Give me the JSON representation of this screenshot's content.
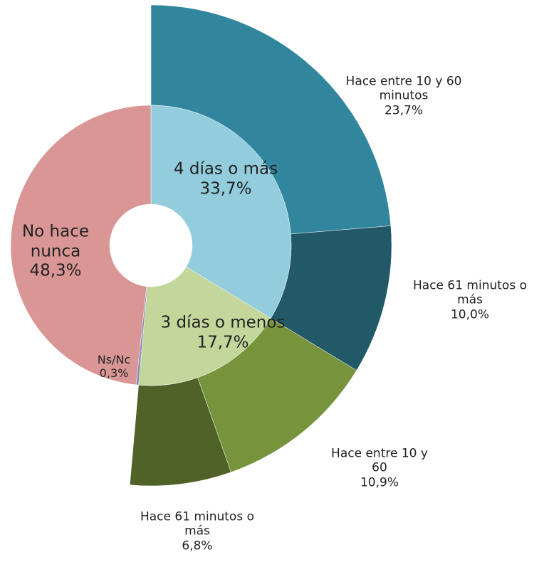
{
  "chart_data": {
    "type": "sunburst",
    "inner": {
      "categories": [
        "4 días o más",
        "3 días o menos",
        "Ns/Nc",
        "No hace nunca"
      ],
      "values": [
        33.7,
        17.7,
        0.3,
        48.3
      ],
      "value_labels": [
        "33,7%",
        "17,7%",
        "0,3%",
        "48,3%"
      ],
      "colors": [
        "#93cddd",
        "#c3d69b",
        "#8c8cb8",
        "#d99694"
      ]
    },
    "outer": {
      "categories": [
        "Hace entre 10 y 60 minutos",
        "Hace 61 minutos o más",
        "Hace entre 10 y 60",
        "Hace 61 minutos o más"
      ],
      "values": [
        23.7,
        10.0,
        10.9,
        6.8
      ],
      "value_labels": [
        "23,7%",
        "10,0%",
        "10,9%",
        "6,8%"
      ],
      "colors": [
        "#31859c",
        "#215968",
        "#77933c",
        "#4f6228"
      ]
    }
  }
}
